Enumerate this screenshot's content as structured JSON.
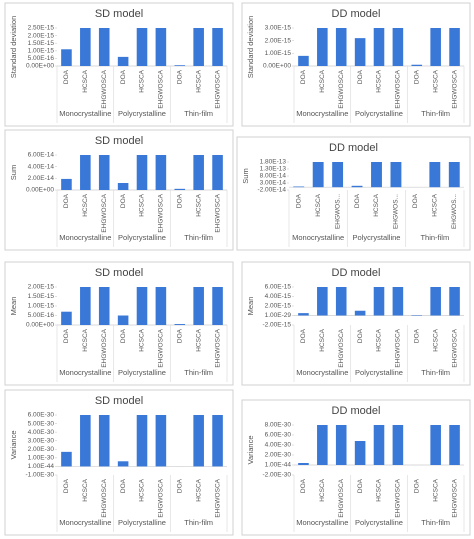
{
  "chart_data": [
    {
      "type": "bar",
      "title": "SD model",
      "ylabel": "Standard deviation",
      "color": "#3a78d8",
      "groups": [
        "Monocrystalline",
        "Polycrystalline",
        "Thin-film"
      ],
      "categories": [
        "DOA",
        "HCSCA",
        "EHGWOSCA",
        "DOA",
        "HCSCA",
        "EHGWOSCA",
        "DOA",
        "HCSCA",
        "EHGWOSCA"
      ],
      "values": [
        1.1e-15,
        2.5e-15,
        2.5e-15,
        6e-16,
        2.5e-15,
        2.5e-15,
        5e-17,
        2.5e-15,
        2.5e-15
      ],
      "ylim": [
        0,
        2.5e-15
      ],
      "yticks": [
        {
          "value": 0,
          "label": "0.00E+00"
        },
        {
          "value": 5e-16,
          "label": "5.00E-16"
        },
        {
          "value": 1e-15,
          "label": "1.00E-15"
        },
        {
          "value": 1.5e-15,
          "label": "1.50E-15"
        },
        {
          "value": 2e-15,
          "label": "2.00E-15"
        },
        {
          "value": 2.5e-15,
          "label": "2.50E-15"
        }
      ]
    },
    {
      "type": "bar",
      "title": "DD model",
      "ylabel": "Standard deviation",
      "color": "#3a78d8",
      "groups": [
        "Monocrystalline",
        "Polycrystalline",
        "Thin-film"
      ],
      "categories": [
        "DOA",
        "HCSCA",
        "EHGWOSCA",
        "DOA",
        "HCSCA",
        "EHGWOSCA",
        "DOA",
        "HCSCA",
        "EHGWOSCA"
      ],
      "values": [
        8e-16,
        3e-15,
        3e-15,
        2.2e-15,
        3e-15,
        3e-15,
        1e-16,
        3e-15,
        3e-15
      ],
      "ylim": [
        0,
        3e-15
      ],
      "yticks": [
        {
          "value": 0,
          "label": "0.00E+00"
        },
        {
          "value": 1e-15,
          "label": "1.00E-15"
        },
        {
          "value": 2e-15,
          "label": "2.00E-15"
        },
        {
          "value": 3e-15,
          "label": "3.00E-15"
        }
      ]
    },
    {
      "type": "bar",
      "title": "SD model",
      "ylabel": "Sum",
      "color": "#3a78d8",
      "groups": [
        "Monocrystalline",
        "Polycrystalline",
        "Thin-film"
      ],
      "categories": [
        "DOA",
        "HCSCA",
        "EHGWOSCA",
        "DOA",
        "HCSCA",
        "EHGWOSCA",
        "DOA",
        "HCSCA",
        "EHGWOSCA"
      ],
      "values": [
        1.9e-14,
        6e-14,
        6e-14,
        1.2e-14,
        6e-14,
        6e-14,
        2e-15,
        6e-14,
        6e-14
      ],
      "ylim": [
        0,
        6e-14
      ],
      "yticks": [
        {
          "value": 0,
          "label": "0.00E+00"
        },
        {
          "value": 2e-14,
          "label": "2.00E-14"
        },
        {
          "value": 4e-14,
          "label": "4.00E-14"
        },
        {
          "value": 6e-14,
          "label": "6.00E-14"
        }
      ]
    },
    {
      "type": "bar",
      "title": "DD model",
      "ylabel": "Sum",
      "color": "#3a78d8",
      "groups": [
        "Monocrystalline",
        "Polycrystalline",
        "Thin-film"
      ],
      "categories": [
        "DOA",
        "HCSCA",
        "EHGWOS...",
        "DOA",
        "HCSCA",
        "EHGWOS...",
        "DOA",
        "HCSCA",
        "EHGWOS..."
      ],
      "values": [
        5e-15,
        1.8e-13,
        1.8e-13,
        1e-14,
        1.8e-13,
        1.8e-13,
        0,
        1.8e-13,
        1.8e-13
      ],
      "ylim": [
        -2e-14,
        1.8e-13
      ],
      "yticks": [
        {
          "value": -2e-14,
          "label": "-2.00E-14"
        },
        {
          "value": 3e-14,
          "label": "3.00E-14"
        },
        {
          "value": 8e-14,
          "label": "8.00E-14"
        },
        {
          "value": 1.3e-13,
          "label": "1.30E-13"
        },
        {
          "value": 1.8e-13,
          "label": "1.80E-13"
        }
      ]
    },
    {
      "type": "bar",
      "title": "SD model",
      "ylabel": "Mean",
      "color": "#3a78d8",
      "groups": [
        "Monocrystalline",
        "Polycrystalline",
        "Thin-film"
      ],
      "categories": [
        "DOA",
        "HCSCA",
        "EHGWOSCA",
        "DOA",
        "HCSCA",
        "EHGWOSCA",
        "DOA",
        "HCSCA",
        "EHGWOSCA"
      ],
      "values": [
        7e-16,
        2e-15,
        2e-15,
        5e-16,
        2e-15,
        2e-15,
        5e-17,
        2e-15,
        2e-15
      ],
      "ylim": [
        0,
        2e-15
      ],
      "yticks": [
        {
          "value": 0,
          "label": "0.00E+00"
        },
        {
          "value": 5e-16,
          "label": "5.00E-16"
        },
        {
          "value": 1e-15,
          "label": "1.00E-15"
        },
        {
          "value": 1.5e-15,
          "label": "1.50E-15"
        },
        {
          "value": 2e-15,
          "label": "2.00E-15"
        }
      ]
    },
    {
      "type": "bar",
      "title": "DD model",
      "ylabel": "Mean",
      "color": "#3a78d8",
      "groups": [
        "Monocrystalline",
        "Polycrystalline",
        "Thin-film"
      ],
      "categories": [
        "DOA",
        "HCSCA",
        "EHGWOSCA",
        "DOA",
        "HCSCA",
        "EHGWOSCA",
        "DOA",
        "HCSCA",
        "EHGWOSCA"
      ],
      "values": [
        5e-16,
        6e-15,
        6e-15,
        1e-15,
        6e-15,
        6e-15,
        1e-16,
        6e-15,
        6e-15
      ],
      "ylim": [
        -2e-15,
        6e-15
      ],
      "yticks": [
        {
          "value": -2e-15,
          "label": "-2.00E-15"
        },
        {
          "value": 1e-29,
          "label": "1.00E-29"
        },
        {
          "value": 2e-15,
          "label": "2.00E-15"
        },
        {
          "value": 4e-15,
          "label": "4.00E-15"
        },
        {
          "value": 6e-15,
          "label": "6.00E-15"
        }
      ]
    },
    {
      "type": "bar",
      "title": "SD model",
      "ylabel": "Variance",
      "color": "#3a78d8",
      "groups": [
        "Monocrystalline",
        "Polycrystalline",
        "Thin-film"
      ],
      "categories": [
        "DOA",
        "HCSCA",
        "EHGWOSCA",
        "DOA",
        "HCSCA",
        "EHGWOSCA",
        "DOA",
        "HCSCA",
        "EHGWOSCA"
      ],
      "values": [
        1.7e-30,
        6e-30,
        6e-30,
        6e-31,
        6e-30,
        6e-30,
        0,
        6e-30,
        6e-30
      ],
      "ylim": [
        -1e-30,
        6e-30
      ],
      "yticks": [
        {
          "value": -1e-30,
          "label": "-1.00E-30"
        },
        {
          "value": 1e-44,
          "label": "1.00E-44"
        },
        {
          "value": 1e-30,
          "label": "1.00E-30"
        },
        {
          "value": 2e-30,
          "label": "2.00E-30"
        },
        {
          "value": 3e-30,
          "label": "3.00E-30"
        },
        {
          "value": 4e-30,
          "label": "4.00E-30"
        },
        {
          "value": 5e-30,
          "label": "5.00E-30"
        },
        {
          "value": 6e-30,
          "label": "6.00E-30"
        }
      ]
    },
    {
      "type": "bar",
      "title": "DD model",
      "ylabel": "Variance",
      "color": "#3a78d8",
      "groups": [
        "Monocrystalline",
        "Polycrystalline",
        "Thin-film"
      ],
      "categories": [
        "DOA",
        "HCSCA",
        "EHGWOSCA",
        "DOA",
        "HCSCA",
        "EHGWOSCA",
        "DOA",
        "HCSCA",
        "EHGWOSCA"
      ],
      "values": [
        4e-31,
        8e-30,
        8e-30,
        4.8e-30,
        8e-30,
        8e-30,
        0,
        8e-30,
        8e-30
      ],
      "ylim": [
        -2e-30,
        8e-30
      ],
      "yticks": [
        {
          "value": -2e-30,
          "label": "-2.00E-30"
        },
        {
          "value": 1e-44,
          "label": "1.00E-44"
        },
        {
          "value": 2e-30,
          "label": "2.00E-30"
        },
        {
          "value": 4e-30,
          "label": "4.00E-30"
        },
        {
          "value": 6e-30,
          "label": "6.00E-30"
        },
        {
          "value": 8e-30,
          "label": "8.00E-30"
        }
      ]
    }
  ]
}
